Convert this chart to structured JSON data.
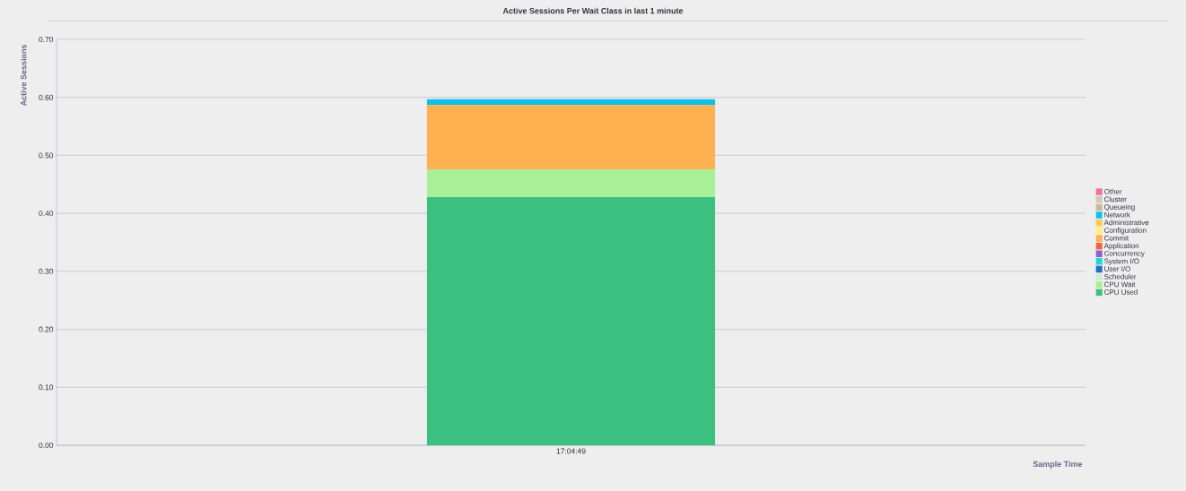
{
  "chart_data": {
    "type": "bar",
    "title": "Active Sessions Per Wait Class in last 1 minute",
    "xlabel": "Sample Time",
    "ylabel": "Active Sessions",
    "categories": [
      "17:04:49"
    ],
    "stacked": true,
    "series": [
      {
        "name": "CPU Used",
        "color": "#3cc080",
        "values": [
          0.428
        ]
      },
      {
        "name": "CPU Wait",
        "color": "#a8f098",
        "values": [
          0.048
        ]
      },
      {
        "name": "Scheduler",
        "color": "#d4e8d4",
        "values": [
          0
        ]
      },
      {
        "name": "User I/O",
        "color": "#1c70c8",
        "values": [
          0
        ]
      },
      {
        "name": "System I/O",
        "color": "#18d8d8",
        "values": [
          0
        ]
      },
      {
        "name": "Concurrency",
        "color": "#9060c8",
        "values": [
          0
        ]
      },
      {
        "name": "Application",
        "color": "#f86040",
        "values": [
          0
        ]
      },
      {
        "name": "Commit",
        "color": "#ffb050",
        "values": [
          0.111
        ]
      },
      {
        "name": "Configuration",
        "color": "#fff080",
        "values": [
          0
        ]
      },
      {
        "name": "Administrative",
        "color": "#ffc850",
        "values": [
          0
        ]
      },
      {
        "name": "Network",
        "color": "#10c0e8",
        "values": [
          0.01
        ]
      },
      {
        "name": "Queueing",
        "color": "#c8b898",
        "values": [
          0
        ]
      },
      {
        "name": "Cluster",
        "color": "#d0c8b8",
        "values": [
          0
        ]
      },
      {
        "name": "Other",
        "color": "#f070a0",
        "values": [
          0
        ]
      }
    ],
    "ylim": [
      0,
      0.7
    ],
    "yticks": [
      {
        "value": 0,
        "label": "0.00"
      },
      {
        "value": 0.1,
        "label": "0.10"
      },
      {
        "value": 0.2,
        "label": "0.20"
      },
      {
        "value": 0.3,
        "label": "0.30"
      },
      {
        "value": 0.4,
        "label": "0.40"
      },
      {
        "value": 0.5,
        "label": "0.50"
      },
      {
        "value": 0.6,
        "label": "0.60"
      },
      {
        "value": 0.7,
        "label": "0.70"
      }
    ],
    "grid": "y",
    "legend": "right"
  }
}
